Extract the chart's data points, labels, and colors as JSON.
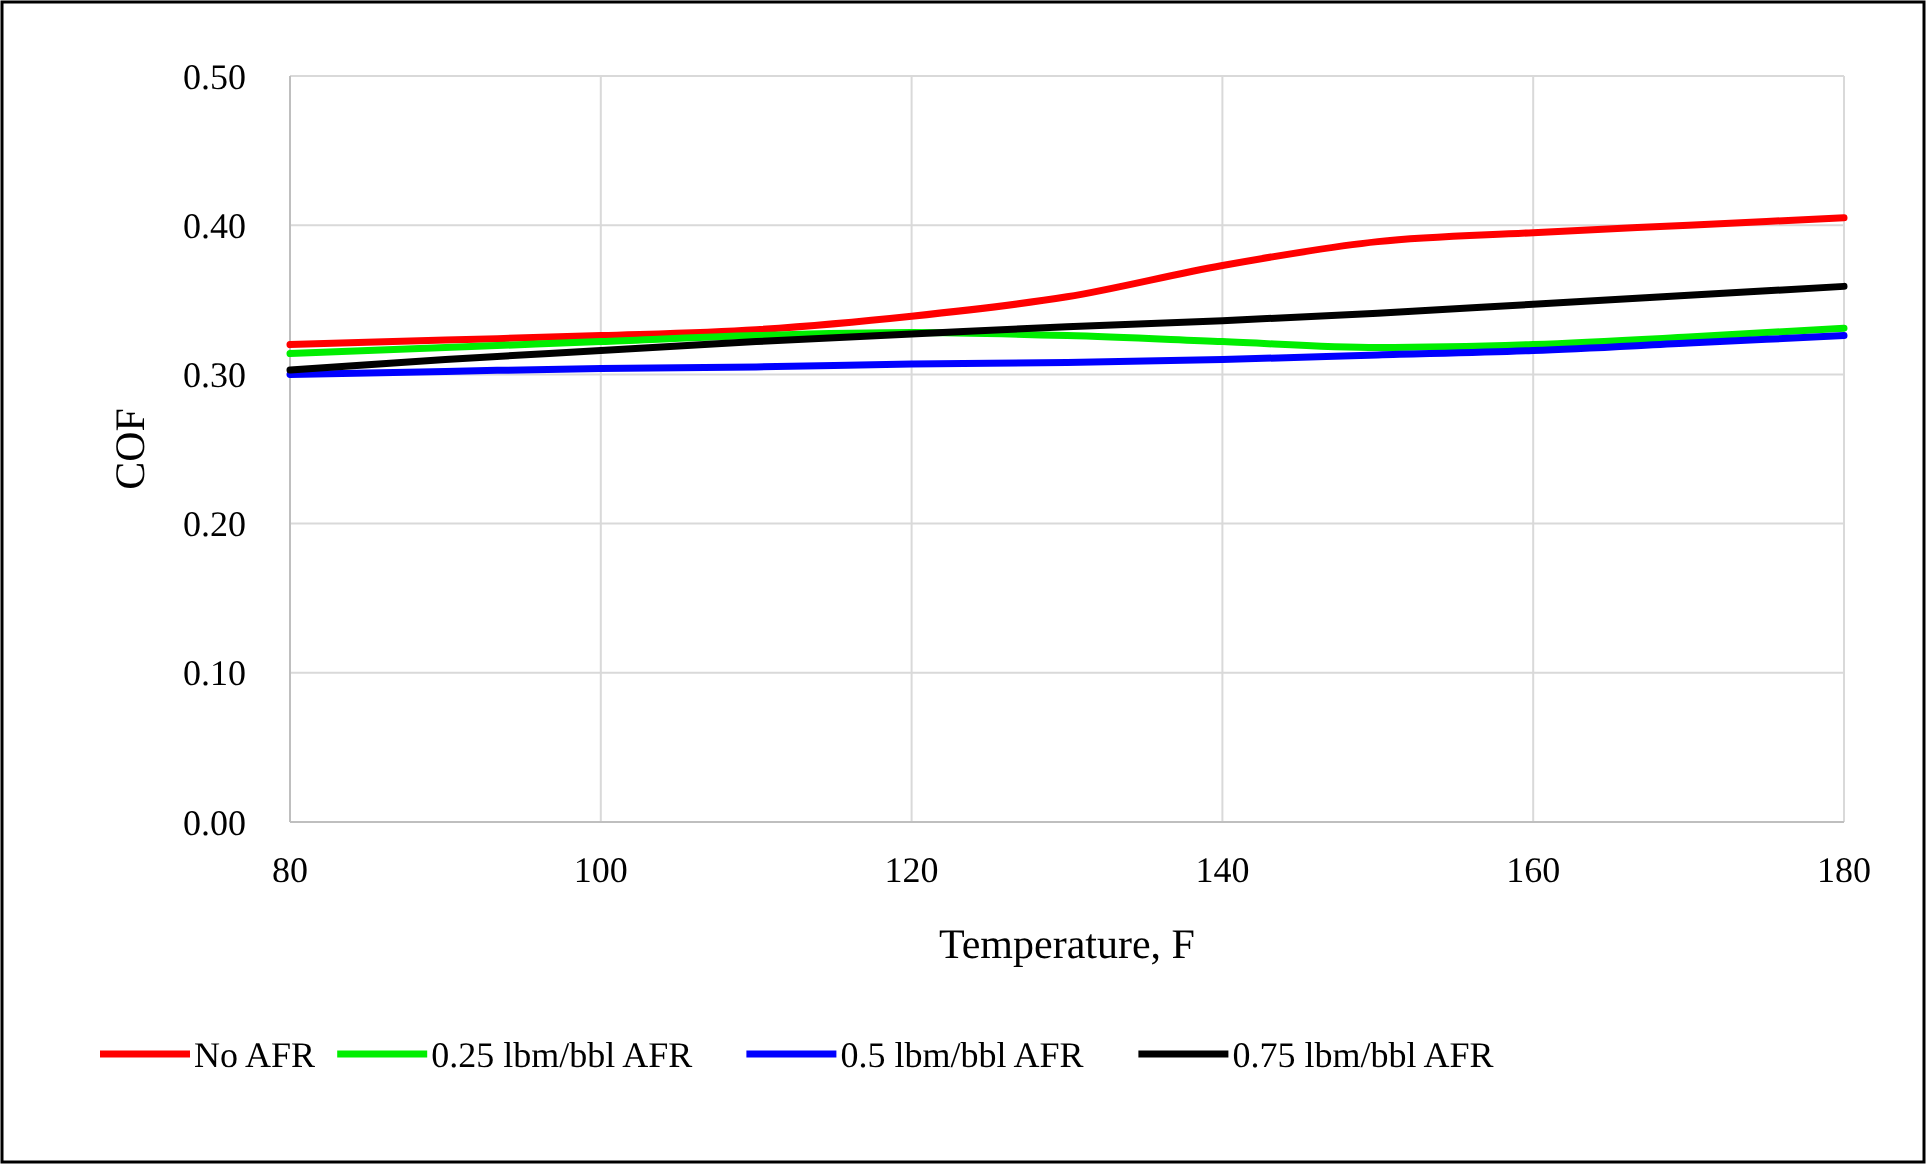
{
  "chart_data": {
    "type": "line",
    "xlabel": "Temperature, F",
    "ylabel": "COF",
    "x": [
      80,
      90,
      100,
      110,
      120,
      130,
      140,
      150,
      160,
      170,
      180
    ],
    "xlim": [
      80,
      180
    ],
    "xticks": [
      80,
      100,
      120,
      140,
      160,
      180
    ],
    "ylim": [
      0,
      0.5
    ],
    "yticks": [
      {
        "value": 0,
        "label": "0.00"
      },
      {
        "value": 0.1,
        "label": "0.10"
      },
      {
        "value": 0.2,
        "label": "0.20"
      },
      {
        "value": 0.3,
        "label": "0.30"
      },
      {
        "value": 0.4,
        "label": "0.40"
      },
      {
        "value": 0.5,
        "label": "0.50"
      }
    ],
    "grid": true,
    "legend": "bottom",
    "marker": "none",
    "line_style": "solid",
    "series": [
      {
        "name": "No AFR",
        "color": "#ff0000",
        "values": [
          0.32,
          0.323,
          0.326,
          0.33,
          0.339,
          0.352,
          0.373,
          0.389,
          0.395,
          0.4,
          0.405
        ]
      },
      {
        "name": "0.25 lbm/bbl AFR",
        "color": "#00ee00",
        "values": [
          0.314,
          0.318,
          0.322,
          0.326,
          0.328,
          0.326,
          0.322,
          0.318,
          0.32,
          0.325,
          0.331
        ]
      },
      {
        "name": "0.5 lbm/bbl AFR",
        "color": "#0000ff",
        "values": [
          0.3,
          0.302,
          0.304,
          0.305,
          0.307,
          0.308,
          0.31,
          0.313,
          0.316,
          0.321,
          0.326
        ]
      },
      {
        "name": "0.75 lbm/bbl AFR",
        "color": "#000000",
        "values": [
          0.303,
          0.31,
          0.316,
          0.322,
          0.327,
          0.332,
          0.336,
          0.341,
          0.347,
          0.353,
          0.359
        ]
      }
    ]
  }
}
